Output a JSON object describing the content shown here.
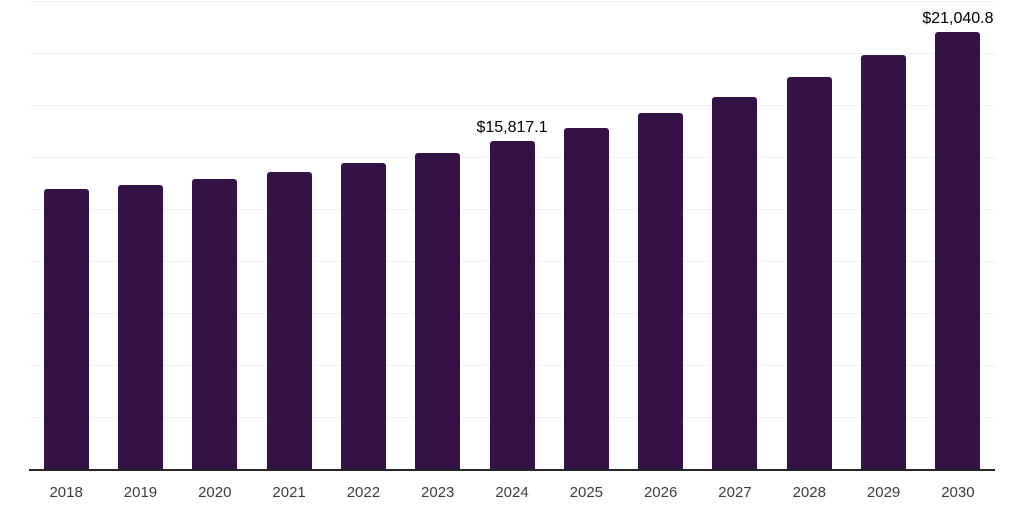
{
  "chart_data": {
    "type": "bar",
    "title": "",
    "xlabel": "",
    "ylabel": "",
    "categories": [
      "2018",
      "2019",
      "2020",
      "2021",
      "2022",
      "2023",
      "2024",
      "2025",
      "2026",
      "2027",
      "2028",
      "2029",
      "2030"
    ],
    "values": [
      13520,
      13700,
      13980,
      14350,
      14780,
      15260,
      15817.1,
      16420,
      17150,
      17950,
      18900,
      19950,
      21040.8
    ],
    "data_labels": [
      "",
      "",
      "",
      "",
      "",
      "",
      "$15,817.1",
      "",
      "",
      "",
      "",
      "",
      "$21,040.8"
    ],
    "ylim": [
      0,
      22500
    ],
    "gridline_interval": 2500,
    "grid": true,
    "legend": false,
    "y_axis_tick_labels_visible": false
  },
  "style": {
    "bar_color": "#341247",
    "axis_line_color": "#262626",
    "gridline_color": "#f2f2f2",
    "value_label_color": "#000000",
    "tick_label_color": "#3d3d3d",
    "background": "#ffffff"
  }
}
